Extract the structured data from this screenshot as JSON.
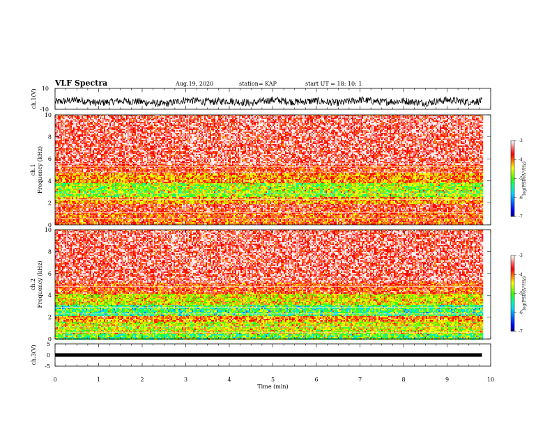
{
  "header": {
    "title": "VLF Spectra",
    "date": "Aug.19, 2020",
    "station": "station= KAP",
    "start": "start UT = 18: 10: 1"
  },
  "chart_data": [
    {
      "type": "line",
      "panel": "ch1-waveform",
      "ylabel": "ch.1(V)",
      "ylim": [
        -10,
        10
      ],
      "yticks": [
        "10",
        "-10"
      ],
      "xlim": [
        0,
        10
      ],
      "note": "dense waveform signal, amplitude varies roughly between -7 and 3 V",
      "x": [
        0,
        0.5,
        1,
        1.5,
        2,
        2.5,
        3,
        3.5,
        4,
        4.5,
        5,
        5.5,
        6,
        6.5,
        7,
        7.5,
        8,
        8.5,
        9,
        9.5,
        9.8
      ],
      "values": [
        -3,
        -1,
        -4,
        -2,
        -3,
        -5,
        -1,
        -3,
        -2,
        -4,
        -1,
        -3,
        -2,
        -4,
        -1,
        -3,
        -2,
        -4,
        -1,
        -3,
        -2
      ]
    },
    {
      "type": "heatmap",
      "panel": "ch1-spectrogram",
      "ylabel": "ch.1\nFrequency (kHz)",
      "ylim": [
        0,
        10
      ],
      "yticks": [
        "0",
        "2",
        "4",
        "6",
        "8",
        "10"
      ],
      "xlim": [
        0,
        10
      ],
      "colorbar": {
        "label": "log(PSD)(V²/Hz)",
        "range": [
          -7,
          -3
        ],
        "ticks": [
          "-3",
          "-4",
          "-5",
          "-6",
          "-7"
        ]
      },
      "bands_kHz_to_value": [
        {
          "from": 0,
          "to": 1.2,
          "value": -4.2
        },
        {
          "from": 1.2,
          "to": 2.0,
          "value": -3.9
        },
        {
          "from": 2.0,
          "to": 2.6,
          "value": -4.6
        },
        {
          "from": 2.6,
          "to": 3.8,
          "value": -5.2
        },
        {
          "from": 3.8,
          "to": 4.8,
          "value": -4.5
        },
        {
          "from": 4.8,
          "to": 5.5,
          "value": -4.0
        },
        {
          "from": 5.5,
          "to": 10,
          "value": -3.7
        }
      ]
    },
    {
      "type": "heatmap",
      "panel": "ch2-spectrogram",
      "ylabel": "ch.2\nFrequency (kHz)",
      "ylim": [
        0,
        10
      ],
      "yticks": [
        "0",
        "2",
        "4",
        "6",
        "8",
        "10"
      ],
      "xlim": [
        0,
        10
      ],
      "colorbar": {
        "label": "log(PSD)(V²/Hz)",
        "range": [
          -7,
          -3
        ],
        "ticks": [
          "-3",
          "-4",
          "-5",
          "-6",
          "-7"
        ]
      },
      "bands_kHz_to_value": [
        {
          "from": 0,
          "to": 0.5,
          "value": -5.5
        },
        {
          "from": 0.5,
          "to": 1.6,
          "value": -5.0
        },
        {
          "from": 1.6,
          "to": 2.2,
          "value": -4.4
        },
        {
          "from": 2.2,
          "to": 3.2,
          "value": -5.6
        },
        {
          "from": 3.2,
          "to": 4.2,
          "value": -4.9
        },
        {
          "from": 4.2,
          "to": 5.2,
          "value": -4.1
        },
        {
          "from": 5.2,
          "to": 10,
          "value": -3.7
        }
      ]
    },
    {
      "type": "line",
      "panel": "ch3-waveform",
      "ylabel": "ch.3(V)",
      "ylim": [
        -5,
        5
      ],
      "yticks": [
        "5",
        "0",
        "-5"
      ],
      "xlim": [
        0,
        10
      ],
      "xlabel": "Time (min)",
      "xticks": [
        "0",
        "1",
        "2",
        "3",
        "4",
        "5",
        "6",
        "7",
        "8",
        "9",
        "10"
      ],
      "x": [
        0,
        9.8
      ],
      "values": [
        0,
        0
      ]
    }
  ],
  "colors": {
    "colormap": [
      "#00007a",
      "#0000ff",
      "#0077ff",
      "#00d7ff",
      "#00ff96",
      "#3cff00",
      "#b4ff00",
      "#ffff00",
      "#ffa500",
      "#ff5000",
      "#ff0000",
      "#ff6a6a",
      "#ffd0d0",
      "#ffffff"
    ],
    "line": "#000000"
  }
}
